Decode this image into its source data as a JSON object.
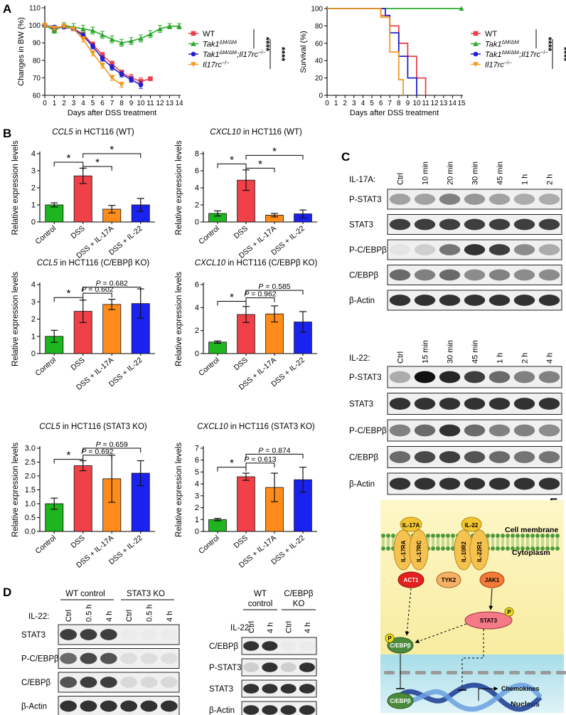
{
  "panels": {
    "A": "A",
    "B": "B",
    "C": "C",
    "D": "D",
    "E": "E"
  },
  "chart_data": [
    {
      "id": "A-left",
      "type": "line",
      "xlabel": "Days after DSS treatment",
      "ylabel": "Changes in BW (%)",
      "xlim": [
        0,
        14
      ],
      "ylim": [
        60,
        110
      ],
      "xticks": [
        0,
        1,
        2,
        3,
        4,
        5,
        6,
        7,
        8,
        9,
        10,
        11,
        12,
        13,
        14
      ],
      "yticks": [
        60,
        70,
        80,
        90,
        100,
        110
      ],
      "legend": {
        "placement": "right",
        "sig1": "****",
        "sig2": "****"
      },
      "series": [
        {
          "name": "WT",
          "color": "#e8404a",
          "marker": "square",
          "x": [
            0,
            1,
            2,
            3,
            4,
            5,
            6,
            7,
            8,
            9,
            10,
            11
          ],
          "y": [
            100,
            97.5,
            99.5,
            98,
            95,
            89,
            83,
            78,
            73,
            70,
            68,
            69.5
          ],
          "err": [
            1,
            1,
            1,
            1,
            1,
            1.5,
            1.5,
            1.5,
            1.5,
            2,
            2,
            1
          ]
        },
        {
          "name": "Tak1",
          "sup": "ΔM/ΔM",
          "color": "#2aaa2a",
          "marker": "triangle",
          "x": [
            0,
            1,
            2,
            3,
            4,
            5,
            6,
            7,
            8,
            9,
            10,
            11,
            12,
            13,
            14
          ],
          "y": [
            100,
            97,
            100,
            99,
            98,
            97,
            94.5,
            92,
            90,
            91,
            92.5,
            95,
            98,
            99.5,
            99.5
          ],
          "err": [
            1,
            1.5,
            1.5,
            2,
            2,
            2,
            2,
            2,
            2,
            2,
            2,
            2,
            2,
            1.5,
            1.5
          ]
        },
        {
          "name": "Tak1",
          "sup": "ΔM/ΔM",
          "name2": ";Il17rc",
          "sup2": "−/−",
          "color": "#2020d0",
          "marker": "circle",
          "x": [
            0,
            1,
            2,
            3,
            4,
            5,
            6,
            7,
            8,
            9,
            10
          ],
          "y": [
            100,
            99,
            99,
            98,
            94,
            88,
            81,
            76,
            72,
            69,
            66
          ],
          "err": [
            1,
            1,
            1,
            1,
            1.5,
            1.5,
            1.5,
            1.5,
            1.5,
            1.5,
            2
          ]
        },
        {
          "name": "Il17rc",
          "sup": "−/−",
          "color": "#f39a1c",
          "marker": "triangle-down",
          "x": [
            0,
            1,
            2,
            3,
            4,
            5,
            6,
            7,
            8
          ],
          "y": [
            100,
            98.5,
            99.5,
            98,
            92,
            84,
            77,
            70,
            66
          ],
          "err": [
            1,
            1,
            1,
            1,
            1.5,
            1.5,
            1.5,
            1.5,
            1.5
          ]
        }
      ]
    },
    {
      "id": "A-right",
      "type": "line",
      "xlabel": "Days after DSS treatment",
      "ylabel": "Survival (%)",
      "xlim": [
        0,
        15
      ],
      "ylim": [
        0,
        100
      ],
      "xticks": [
        0,
        1,
        2,
        3,
        4,
        5,
        6,
        7,
        8,
        9,
        10,
        11,
        12,
        13,
        14,
        15
      ],
      "yticks": [
        0,
        20,
        40,
        60,
        80,
        100
      ],
      "legend": {
        "placement": "right",
        "sig1": "****",
        "sig2": "****"
      },
      "series": [
        {
          "name": "WT",
          "color": "#e8404a",
          "marker": "square",
          "steps": [
            [
              0,
              100
            ],
            [
              6,
              100
            ],
            [
              6,
              92
            ],
            [
              7,
              92
            ],
            [
              7,
              80
            ],
            [
              8,
              80
            ],
            [
              8,
              60
            ],
            [
              9,
              60
            ],
            [
              9,
              45
            ],
            [
              10,
              45
            ],
            [
              10,
              20
            ],
            [
              11,
              20
            ],
            [
              11,
              0
            ]
          ]
        },
        {
          "name": "Tak1",
          "sup": "ΔM/ΔM",
          "color": "#2aaa2a",
          "marker": "triangle",
          "steps": [
            [
              0,
              100
            ],
            [
              15,
              100
            ]
          ]
        },
        {
          "name": "Tak1",
          "sup": "ΔM/ΔM",
          "name2": ";Il17rc",
          "sup2": "−/−",
          "color": "#2020d0",
          "marker": "circle",
          "steps": [
            [
              0,
              100
            ],
            [
              6.5,
              100
            ],
            [
              6.5,
              92
            ],
            [
              7,
              92
            ],
            [
              7,
              72
            ],
            [
              8,
              72
            ],
            [
              8,
              45
            ],
            [
              9,
              45
            ],
            [
              9,
              20
            ],
            [
              10,
              20
            ],
            [
              10,
              0
            ]
          ]
        },
        {
          "name": "Il17rc",
          "sup": "−/−",
          "color": "#f39a1c",
          "marker": "triangle-down",
          "steps": [
            [
              0,
              100
            ],
            [
              6,
              100
            ],
            [
              6,
              90
            ],
            [
              7,
              90
            ],
            [
              7,
              50
            ],
            [
              8,
              50
            ],
            [
              8,
              18
            ],
            [
              8.5,
              18
            ],
            [
              8.5,
              0
            ]
          ]
        }
      ]
    },
    {
      "id": "B1",
      "type": "bar",
      "gene": "CCL5",
      "title_rest": " in HCT116 (WT)",
      "ylabel": "Relative expression levels",
      "categories": [
        "Control",
        "DSS",
        "DSS + IL-17A",
        "DSS + IL-22"
      ],
      "values": [
        1.0,
        2.7,
        0.75,
        1.0
      ],
      "errors": [
        0.12,
        0.45,
        0.22,
        0.38
      ],
      "ylim": [
        0,
        4
      ],
      "yticks": [
        0,
        1,
        2,
        3,
        4
      ],
      "colors": [
        "#1eb51e",
        "#f04048",
        "#ff8c1a",
        "#1a22f0"
      ],
      "brackets": [
        {
          "from": 0,
          "to": 1,
          "level": 3.5,
          "text": "*"
        },
        {
          "from": 1,
          "to": 2,
          "level": 3.25,
          "text": "*"
        },
        {
          "from": 1,
          "to": 3,
          "level": 4.0,
          "text": "*"
        }
      ]
    },
    {
      "id": "B2",
      "type": "bar",
      "gene": "CXCL10",
      "title_rest": " in HCT116 (WT)",
      "ylabel": "Relative expression levels",
      "categories": [
        "Control",
        "DSS",
        "DSS + IL-17A",
        "DSS + IL-22"
      ],
      "values": [
        1.0,
        4.9,
        0.8,
        0.95
      ],
      "errors": [
        0.3,
        1.2,
        0.2,
        0.45
      ],
      "ylim": [
        0,
        8
      ],
      "yticks": [
        0,
        2,
        4,
        6,
        8
      ],
      "colors": [
        "#1eb51e",
        "#f04048",
        "#ff8c1a",
        "#1a22f0"
      ],
      "brackets": [
        {
          "from": 0,
          "to": 1,
          "level": 6.8,
          "text": "*"
        },
        {
          "from": 1,
          "to": 2,
          "level": 6.3,
          "text": "*"
        },
        {
          "from": 1,
          "to": 3,
          "level": 7.8,
          "text": "*"
        }
      ]
    },
    {
      "id": "B3",
      "type": "bar",
      "gene": "CCL5",
      "title_rest": " in HCT116 (C/EBPβ KO)",
      "ylabel": "Relative expression levels",
      "categories": [
        "Control",
        "DSS",
        "DSS + IL-17A",
        "DSS + IL-22"
      ],
      "values": [
        1.0,
        2.45,
        2.85,
        2.9
      ],
      "errors": [
        0.35,
        0.65,
        0.3,
        0.85
      ],
      "ylim": [
        0,
        4
      ],
      "yticks": [
        0,
        1,
        2,
        3,
        4
      ],
      "colors": [
        "#1eb51e",
        "#f04048",
        "#ff8c1a",
        "#1a22f0"
      ],
      "brackets": [
        {
          "from": 0,
          "to": 1,
          "level": 3.25,
          "text": "*"
        },
        {
          "from": 1,
          "to": 2,
          "level": 3.5,
          "text": "P = 0.602"
        },
        {
          "from": 1,
          "to": 3,
          "level": 3.85,
          "text": "P = 0.682"
        }
      ]
    },
    {
      "id": "B4",
      "type": "bar",
      "gene": "CXCL10",
      "title_rest": " in HCT116 (C/EBPβ KO)",
      "ylabel": "Relative expression levels",
      "categories": [
        "Control",
        "DSS",
        "DSS + IL-17A",
        "DSS + IL-22"
      ],
      "values": [
        1.0,
        3.4,
        3.45,
        2.75
      ],
      "errors": [
        0.1,
        0.7,
        0.7,
        0.9
      ],
      "ylim": [
        0,
        6
      ],
      "yticks": [
        0,
        2,
        4,
        6
      ],
      "colors": [
        "#1eb51e",
        "#f04048",
        "#ff8c1a",
        "#1a22f0"
      ],
      "brackets": [
        {
          "from": 0,
          "to": 1,
          "level": 4.55,
          "text": "*"
        },
        {
          "from": 1,
          "to": 2,
          "level": 4.85,
          "text": "P = 0.962"
        },
        {
          "from": 1,
          "to": 3,
          "level": 5.5,
          "text": "P = 0.585"
        }
      ]
    },
    {
      "id": "B5",
      "type": "bar",
      "gene": "CCL5",
      "title_rest": " in HCT116 (STAT3 KO)",
      "ylabel": "Relative expression levels",
      "categories": [
        "Control",
        "DSS",
        "DSS + IL-17A",
        "DSS + IL-22"
      ],
      "values": [
        1.0,
        2.37,
        1.9,
        2.1
      ],
      "errors": [
        0.2,
        0.18,
        0.85,
        0.45
      ],
      "ylim": [
        0,
        3.0
      ],
      "yticks": [
        0,
        0.5,
        1.0,
        1.5,
        2.0,
        2.5,
        3.0
      ],
      "yfmt": 1,
      "colors": [
        "#1eb51e",
        "#f04048",
        "#ff8c1a",
        "#1a22f0"
      ],
      "brackets": [
        {
          "from": 0,
          "to": 1,
          "level": 2.6,
          "text": "*"
        },
        {
          "from": 1,
          "to": 2,
          "level": 2.75,
          "text": "P = 0.692"
        },
        {
          "from": 1,
          "to": 3,
          "level": 3.0,
          "text": "P = 0.659"
        }
      ]
    },
    {
      "id": "B6",
      "type": "bar",
      "gene": "CXCL10",
      "title_rest": " in HCT116 (STAT3 KO)",
      "ylabel": "Relative expression levels",
      "categories": [
        "Control",
        "DSS",
        "DSS + IL-17A",
        "DSS + IL-22"
      ],
      "values": [
        1.0,
        4.6,
        3.7,
        4.35
      ],
      "errors": [
        0.1,
        0.3,
        1.2,
        1.05
      ],
      "ylim": [
        0,
        7
      ],
      "yticks": [
        0,
        1,
        2,
        3,
        4,
        5,
        6,
        7
      ],
      "colors": [
        "#1eb51e",
        "#f04048",
        "#ff8c1a",
        "#1a22f0"
      ],
      "brackets": [
        {
          "from": 0,
          "to": 1,
          "level": 5.4,
          "text": "*"
        },
        {
          "from": 1,
          "to": 2,
          "level": 5.75,
          "text": "P = 0.613"
        },
        {
          "from": 1,
          "to": 3,
          "level": 6.5,
          "text": "P = 0.874"
        }
      ]
    }
  ],
  "blots": {
    "c_top": {
      "treat_label": "IL-17A:",
      "lanes": [
        "Ctrl",
        "10 min",
        "20 min",
        "30 min",
        "45 min",
        "1 h",
        "2 h"
      ],
      "rows": [
        {
          "label": "P-STAT3",
          "int": [
            0.35,
            0.35,
            0.5,
            0.4,
            0.35,
            0.3,
            0.3
          ]
        },
        {
          "label": "STAT3",
          "int": [
            0.8,
            0.8,
            0.8,
            0.8,
            0.8,
            0.8,
            0.8
          ]
        },
        {
          "label": "P-C/EBPβ",
          "int": [
            0.05,
            0.15,
            0.55,
            0.85,
            0.8,
            0.45,
            0.3
          ]
        },
        {
          "label": "C/EBPβ",
          "int": [
            0.6,
            0.5,
            0.6,
            0.45,
            0.5,
            0.45,
            0.45
          ]
        },
        {
          "label": "β-Actin",
          "int": [
            0.85,
            0.85,
            0.85,
            0.85,
            0.85,
            0.85,
            0.85
          ]
        }
      ]
    },
    "c_bot": {
      "treat_label": "IL-22:",
      "lanes": [
        "Ctrl",
        "15 min",
        "30 min",
        "45 min",
        "1 h",
        "2 h",
        "4 h"
      ],
      "rows": [
        {
          "label": "P-STAT3",
          "int": [
            0.3,
            1.0,
            0.9,
            0.8,
            0.6,
            0.5,
            0.5
          ]
        },
        {
          "label": "STAT3",
          "int": [
            0.85,
            0.85,
            0.85,
            0.85,
            0.85,
            0.85,
            0.85
          ]
        },
        {
          "label": "P-C/EBPβ",
          "int": [
            0.5,
            0.6,
            0.85,
            0.6,
            0.5,
            0.5,
            0.45
          ]
        },
        {
          "label": "C/EBPβ",
          "int": [
            0.6,
            0.75,
            0.8,
            0.7,
            0.6,
            0.55,
            0.55
          ]
        },
        {
          "label": "β-Actin",
          "int": [
            0.85,
            0.85,
            0.85,
            0.85,
            0.85,
            0.85,
            0.85
          ]
        }
      ]
    },
    "d_left": {
      "group1": "WT control",
      "group2": "STAT3 KO",
      "treat_label": "IL-22:",
      "lanes": [
        "Ctrl",
        "0.5 h",
        "4 h",
        "Ctrl",
        "0.5 h",
        "4 h"
      ],
      "rows": [
        {
          "label": "STAT3",
          "int": [
            0.8,
            0.8,
            0.8,
            0.02,
            0.02,
            0.02
          ]
        },
        {
          "label": "P-C/EBPβ",
          "int": [
            0.6,
            0.75,
            0.7,
            0.08,
            0.08,
            0.08
          ]
        },
        {
          "label": "C/EBPβ",
          "int": [
            0.7,
            0.8,
            0.8,
            0.1,
            0.1,
            0.1
          ]
        },
        {
          "label": "β-Actin",
          "int": [
            0.85,
            0.85,
            0.85,
            0.85,
            0.85,
            0.85
          ]
        }
      ]
    },
    "d_right": {
      "group1a": "WT",
      "group1b": "control",
      "group2a": "C/EBPβ",
      "group2b": "KO",
      "treat_label": "IL-22:",
      "lanes": [
        "Ctrl",
        "4 h",
        "Ctrl",
        "4 h"
      ],
      "rows": [
        {
          "label": "C/EBPβ",
          "int": [
            0.85,
            0.85,
            0.02,
            0.02
          ]
        },
        {
          "label": "P-STAT3",
          "int": [
            0.15,
            0.85,
            0.15,
            0.85
          ]
        },
        {
          "label": "STAT3",
          "int": [
            0.85,
            0.85,
            0.85,
            0.85
          ]
        },
        {
          "label": "β-Actin",
          "int": [
            0.85,
            0.85,
            0.85,
            0.85
          ]
        }
      ]
    }
  },
  "diagram": {
    "cell_membrane": "Cell membrane",
    "cytoplasm": "Cytoplasm",
    "nucleus": "Nucleus",
    "chemokines": "Chemokines",
    "il17a": "IL-17A",
    "il17ra": "IL-17RA",
    "il17rc": "IL-17RC",
    "act1": "ACT1",
    "il22": "IL-22",
    "il10r2": "IL-10R2",
    "il22r1": "IL-22R1",
    "tyk2": "TYK2",
    "jak1": "JAK1",
    "stat3": "STAT3",
    "p": "P",
    "cebpb": "C/EBPβ",
    "cebpb_nuc": "C/EBPβ",
    "colors": {
      "cytoplasm": "#fbf3b8",
      "nucleus": "#bfe8f0",
      "il17a": "#f2c430",
      "receptor": "#f5c250",
      "act1": "#e42020",
      "tyk2": "#f6b066",
      "jak1": "#f47a3a",
      "stat3": "#f47a88",
      "cebpb": "#4a8a3a",
      "p": "#f0e020"
    }
  }
}
